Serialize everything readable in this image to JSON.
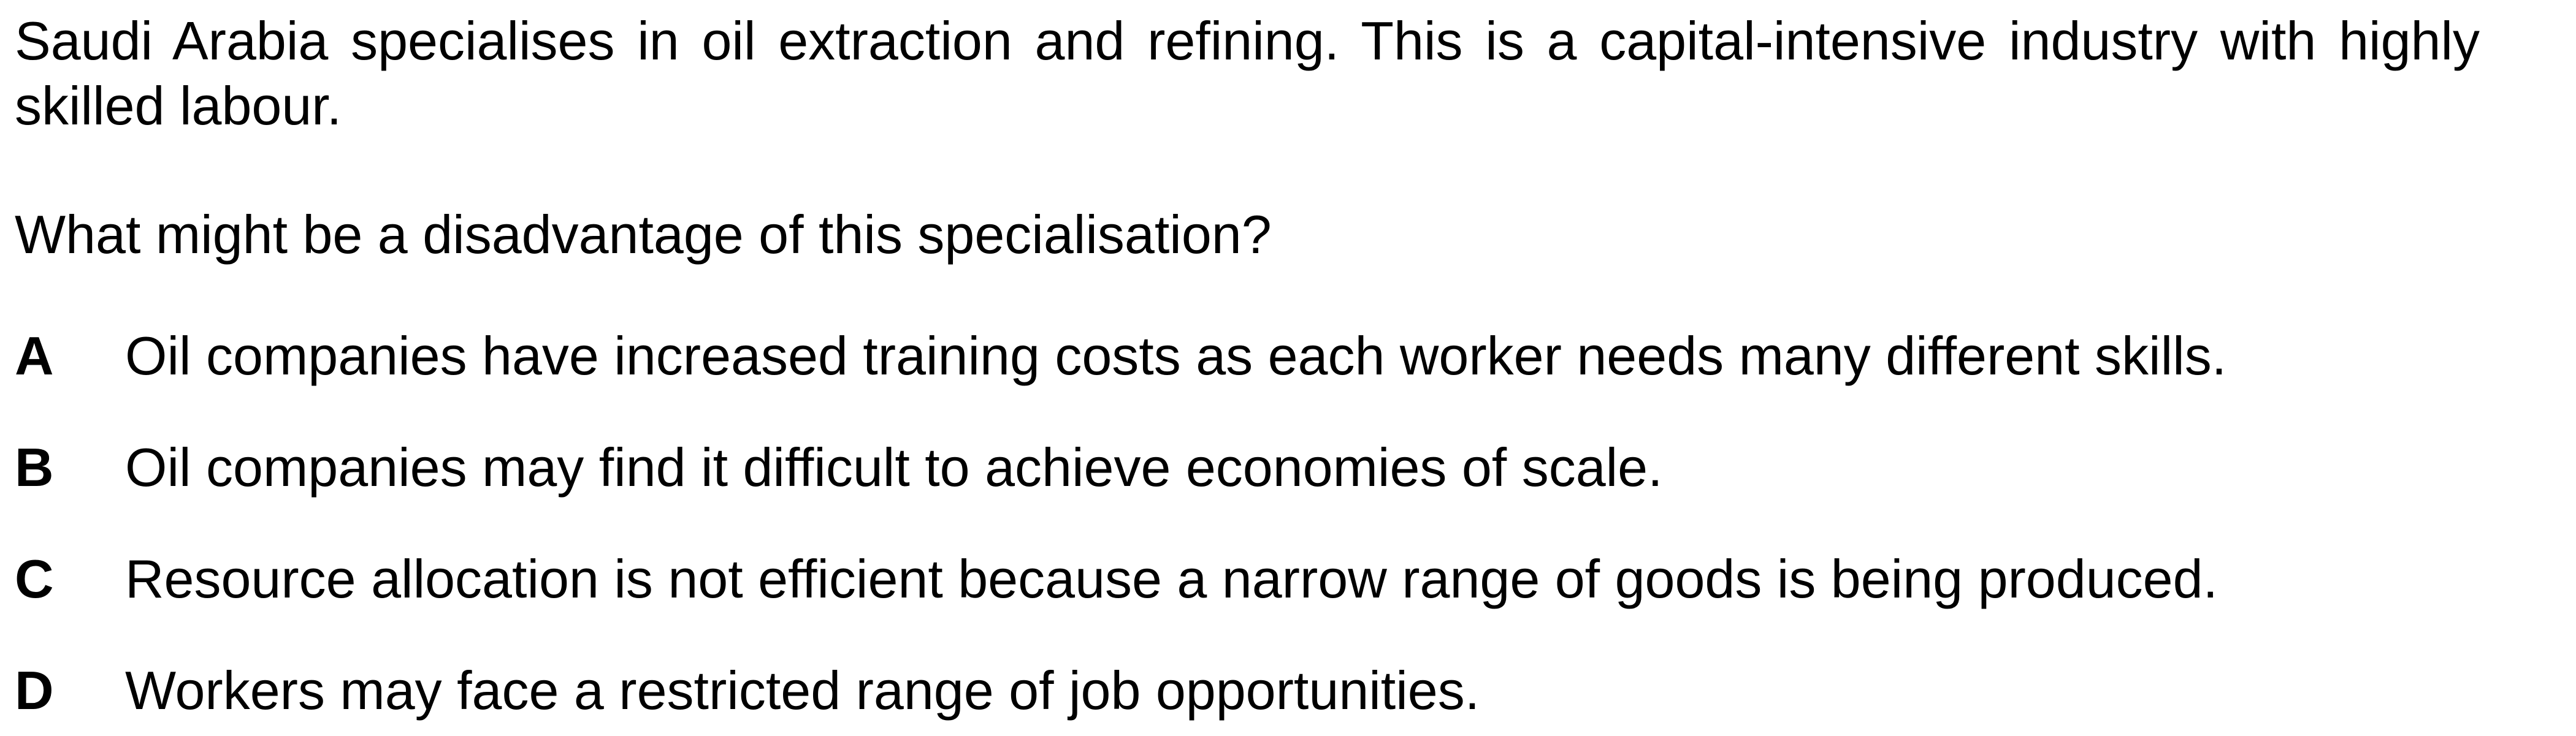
{
  "stem": "Saudi Arabia specialises in oil extraction and refining. This is a capital-intensive industry with highly skilled labour.",
  "question": "What might be a disadvantage of this specialisation?",
  "options": [
    {
      "letter": "A",
      "text": "Oil companies have increased training costs as each worker needs many different skills."
    },
    {
      "letter": "B",
      "text": "Oil companies may find it difficult to achieve economies of scale."
    },
    {
      "letter": "C",
      "text": "Resource allocation is not efficient because a narrow range of goods is being produced."
    },
    {
      "letter": "D",
      "text": "Workers may face a restricted range of job opportunities."
    }
  ]
}
